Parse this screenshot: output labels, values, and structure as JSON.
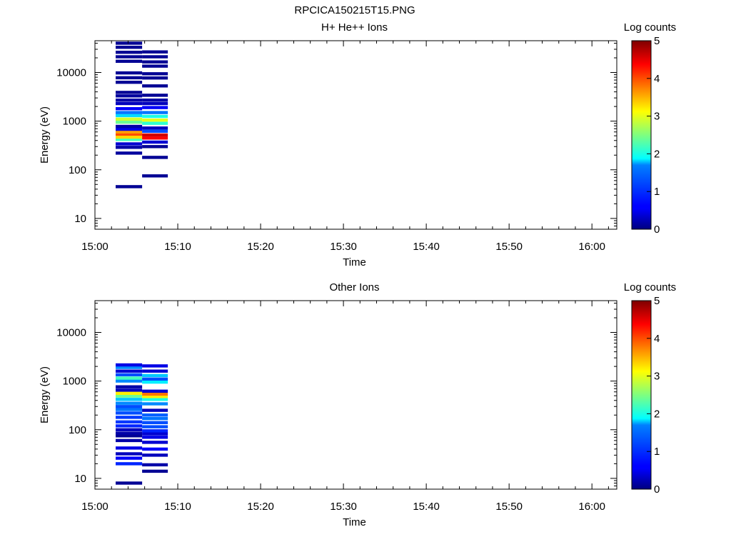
{
  "figure_title": "RPCICA150215T15.PNG",
  "chart_data": [
    {
      "type": "heatmap",
      "title": "H+ He++ Ions",
      "xlabel": "Time",
      "ylabel": "Energy (eV)",
      "x_ticks": [
        "15:00",
        "15:10",
        "15:20",
        "15:30",
        "15:40",
        "15:50",
        "16:00"
      ],
      "x_range": [
        "15:00",
        "16:03"
      ],
      "y_scale": "log",
      "y_ticks": [
        "10",
        "100",
        "1000",
        "10000"
      ],
      "y_range": [
        6,
        45000
      ],
      "colorbar": {
        "label": "Log counts",
        "range": [
          0,
          5
        ],
        "ticks": [
          "0",
          "1",
          "2",
          "3",
          "4",
          "5"
        ]
      },
      "columns": [
        {
          "time_range": [
            "15:02.5",
            "15:05.7"
          ],
          "bins": [
            {
              "energy": 45,
              "log_counts": 0.1
            },
            {
              "energy": 220,
              "log_counts": 0.15
            },
            {
              "energy": 290,
              "log_counts": 0.2
            },
            {
              "energy": 340,
              "log_counts": 0.4
            },
            {
              "energy": 420,
              "log_counts": 2.2
            },
            {
              "energy": 470,
              "log_counts": 3.3
            },
            {
              "energy": 540,
              "log_counts": 4.0
            },
            {
              "energy": 600,
              "log_counts": 3.6
            },
            {
              "energy": 680,
              "log_counts": 0.5
            },
            {
              "energy": 780,
              "log_counts": 0.2
            },
            {
              "energy": 950,
              "log_counts": 2.4
            },
            {
              "energy": 1100,
              "log_counts": 2.9
            },
            {
              "energy": 1300,
              "log_counts": 1.7
            },
            {
              "energy": 1500,
              "log_counts": 1.2
            },
            {
              "energy": 1800,
              "log_counts": 0.6
            },
            {
              "energy": 2300,
              "log_counts": 0.3
            },
            {
              "energy": 2700,
              "log_counts": 0.2
            },
            {
              "energy": 3300,
              "log_counts": 0.15
            },
            {
              "energy": 3900,
              "log_counts": 0.1
            },
            {
              "energy": 6300,
              "log_counts": 0.1
            },
            {
              "energy": 7800,
              "log_counts": 0.1
            },
            {
              "energy": 9800,
              "log_counts": 0.1
            },
            {
              "energy": 17000,
              "log_counts": 0.1
            },
            {
              "energy": 21000,
              "log_counts": 0.1
            },
            {
              "energy": 26000,
              "log_counts": 0.1
            },
            {
              "energy": 33000,
              "log_counts": 0.1
            },
            {
              "energy": 40000,
              "log_counts": 0.1
            }
          ]
        },
        {
          "time_range": [
            "15:05.7",
            "15:08.8"
          ],
          "bins": [
            {
              "energy": 75,
              "log_counts": 0.1
            },
            {
              "energy": 180,
              "log_counts": 0.1
            },
            {
              "energy": 300,
              "log_counts": 0.1
            },
            {
              "energy": 370,
              "log_counts": 0.4
            },
            {
              "energy": 450,
              "log_counts": 4.4
            },
            {
              "energy": 520,
              "log_counts": 4.6
            },
            {
              "energy": 620,
              "log_counts": 1.0
            },
            {
              "energy": 720,
              "log_counts": 0.3
            },
            {
              "energy": 900,
              "log_counts": 2.1
            },
            {
              "energy": 1050,
              "log_counts": 3.0
            },
            {
              "energy": 1250,
              "log_counts": 2.0
            },
            {
              "energy": 1500,
              "log_counts": 1.2
            },
            {
              "energy": 1900,
              "log_counts": 0.6
            },
            {
              "energy": 2300,
              "log_counts": 0.3
            },
            {
              "energy": 2700,
              "log_counts": 0.2
            },
            {
              "energy": 3400,
              "log_counts": 0.1
            },
            {
              "energy": 5300,
              "log_counts": 0.1
            },
            {
              "energy": 7700,
              "log_counts": 0.1
            },
            {
              "energy": 9400,
              "log_counts": 0.1
            },
            {
              "energy": 13500,
              "log_counts": 0.1
            },
            {
              "energy": 16500,
              "log_counts": 0.1
            },
            {
              "energy": 21000,
              "log_counts": 0.1
            },
            {
              "energy": 26500,
              "log_counts": 0.1
            }
          ]
        }
      ]
    },
    {
      "type": "heatmap",
      "title": "Other Ions",
      "xlabel": "Time",
      "ylabel": "Energy (eV)",
      "x_ticks": [
        "15:00",
        "15:10",
        "15:20",
        "15:30",
        "15:40",
        "15:50",
        "16:00"
      ],
      "x_range": [
        "15:00",
        "16:03"
      ],
      "y_scale": "log",
      "y_ticks": [
        "10",
        "100",
        "1000",
        "10000"
      ],
      "y_range": [
        6,
        45000
      ],
      "colorbar": {
        "label": "Log counts",
        "range": [
          0,
          5
        ],
        "ticks": [
          "0",
          "1",
          "2",
          "3",
          "4",
          "5"
        ]
      },
      "columns": [
        {
          "time_range": [
            "15:02.5",
            "15:05.7"
          ],
          "bins": [
            {
              "energy": 8,
              "log_counts": 0.1
            },
            {
              "energy": 20,
              "log_counts": 0.8
            },
            {
              "energy": 26,
              "log_counts": 0.6
            },
            {
              "energy": 32,
              "log_counts": 0.3
            },
            {
              "energy": 42,
              "log_counts": 0.5
            },
            {
              "energy": 60,
              "log_counts": 0.2
            },
            {
              "energy": 75,
              "log_counts": 0.1
            },
            {
              "energy": 85,
              "log_counts": 0.2
            },
            {
              "energy": 100,
              "log_counts": 0.3
            },
            {
              "energy": 120,
              "log_counts": 0.8
            },
            {
              "energy": 145,
              "log_counts": 0.9
            },
            {
              "energy": 180,
              "log_counts": 0.9
            },
            {
              "energy": 220,
              "log_counts": 1.0
            },
            {
              "energy": 260,
              "log_counts": 1.2
            },
            {
              "energy": 300,
              "log_counts": 1.0
            },
            {
              "energy": 350,
              "log_counts": 1.3
            },
            {
              "energy": 420,
              "log_counts": 1.6
            },
            {
              "energy": 490,
              "log_counts": 2.4
            },
            {
              "energy": 560,
              "log_counts": 3.2
            },
            {
              "energy": 650,
              "log_counts": 0.3
            },
            {
              "energy": 760,
              "log_counts": 0.2
            },
            {
              "energy": 1000,
              "log_counts": 1.3
            },
            {
              "energy": 1150,
              "log_counts": 2.2
            },
            {
              "energy": 1350,
              "log_counts": 1.0
            },
            {
              "energy": 1600,
              "log_counts": 0.4
            },
            {
              "energy": 1900,
              "log_counts": 1.3
            },
            {
              "energy": 2150,
              "log_counts": 0.5
            }
          ]
        },
        {
          "time_range": [
            "15:05.7",
            "15:08.8"
          ],
          "bins": [
            {
              "energy": 14,
              "log_counts": 0.1
            },
            {
              "energy": 19,
              "log_counts": 0.2
            },
            {
              "energy": 30,
              "log_counts": 0.3
            },
            {
              "energy": 40,
              "log_counts": 0.6
            },
            {
              "energy": 55,
              "log_counts": 0.4
            },
            {
              "energy": 70,
              "log_counts": 0.5
            },
            {
              "energy": 82,
              "log_counts": 0.4
            },
            {
              "energy": 95,
              "log_counts": 0.8
            },
            {
              "energy": 115,
              "log_counts": 1.0
            },
            {
              "energy": 140,
              "log_counts": 1.0
            },
            {
              "energy": 170,
              "log_counts": 1.2
            },
            {
              "energy": 200,
              "log_counts": 1.1
            },
            {
              "energy": 250,
              "log_counts": 0.3
            },
            {
              "energy": 340,
              "log_counts": 1.3
            },
            {
              "energy": 420,
              "log_counts": 2.0
            },
            {
              "energy": 480,
              "log_counts": 3.2
            },
            {
              "energy": 540,
              "log_counts": 3.8
            },
            {
              "energy": 620,
              "log_counts": 0.4
            },
            {
              "energy": 950,
              "log_counts": 1.8
            },
            {
              "energy": 1100,
              "log_counts": 1.0
            },
            {
              "energy": 1300,
              "log_counts": 1.6
            },
            {
              "energy": 1600,
              "log_counts": 0.4
            },
            {
              "energy": 2050,
              "log_counts": 0.5
            }
          ]
        }
      ]
    }
  ]
}
